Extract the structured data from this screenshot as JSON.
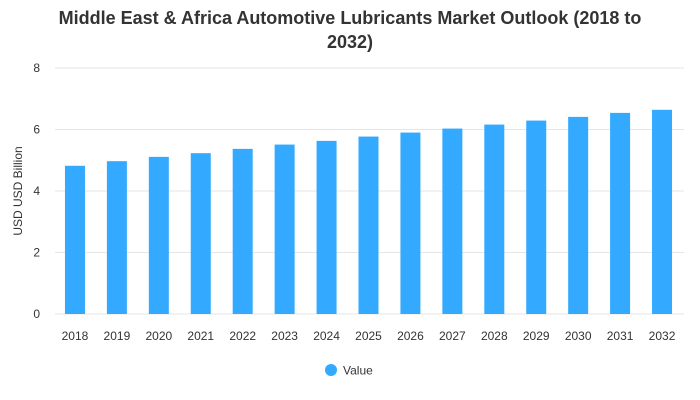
{
  "chart_data": {
    "type": "bar",
    "title": "Middle East & Africa Automotive Lubricants Market Outlook (2018 to 2032)",
    "title_lines": [
      "Middle East & Africa Automotive Lubricants Market Outlook (2018 to",
      "2032)"
    ],
    "xlabel": "",
    "ylabel": "USD USD Billion",
    "ylim": [
      0,
      8
    ],
    "yticks": [
      0,
      2,
      4,
      6,
      8
    ],
    "grid": true,
    "legend_position": "bottom",
    "categories": [
      "2018",
      "2019",
      "2020",
      "2021",
      "2022",
      "2023",
      "2024",
      "2025",
      "2026",
      "2027",
      "2028",
      "2029",
      "2030",
      "2031",
      "2032"
    ],
    "series": [
      {
        "name": "Value",
        "color": "#33aaff",
        "values": [
          4.82,
          4.97,
          5.11,
          5.23,
          5.37,
          5.51,
          5.63,
          5.77,
          5.9,
          6.03,
          6.16,
          6.29,
          6.41,
          6.54,
          6.64
        ]
      }
    ]
  }
}
